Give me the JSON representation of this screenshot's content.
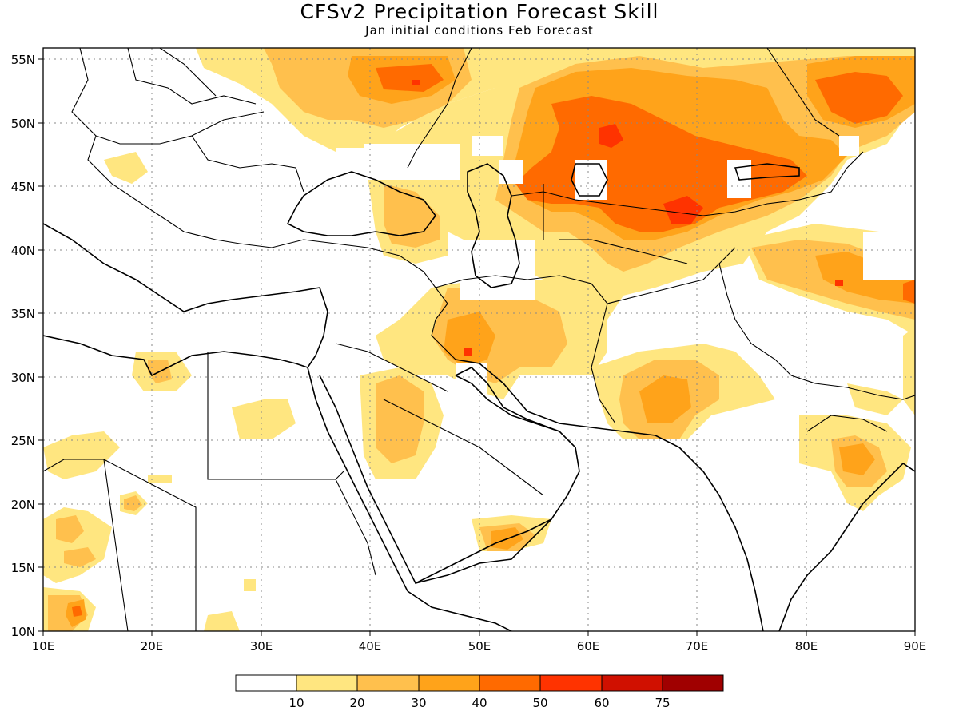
{
  "title": "CFSv2 Precipitation Forecast Skill",
  "subtitle": "Jan initial conditions  Feb Forecast",
  "lat_ticks": [
    "55N",
    "50N",
    "45N",
    "40N",
    "35N",
    "30N",
    "25N",
    "20N",
    "15N",
    "10N"
  ],
  "lon_ticks": [
    "10E",
    "20E",
    "30E",
    "40E",
    "50E",
    "60E",
    "70E",
    "80E",
    "90E"
  ],
  "legend": {
    "colors": [
      "#ffffff",
      "#ffe680",
      "#ffc04d",
      "#ffa31a",
      "#ff6a00",
      "#ff3300",
      "#d01000",
      "#a00000"
    ],
    "labels": [
      "10",
      "20",
      "30",
      "40",
      "50",
      "60",
      "75"
    ]
  },
  "colors": {
    "c10": "#ffe680",
    "c20": "#ffc04d",
    "c30": "#ffa31a",
    "c40": "#ff6a00",
    "c50": "#ff3300"
  }
}
